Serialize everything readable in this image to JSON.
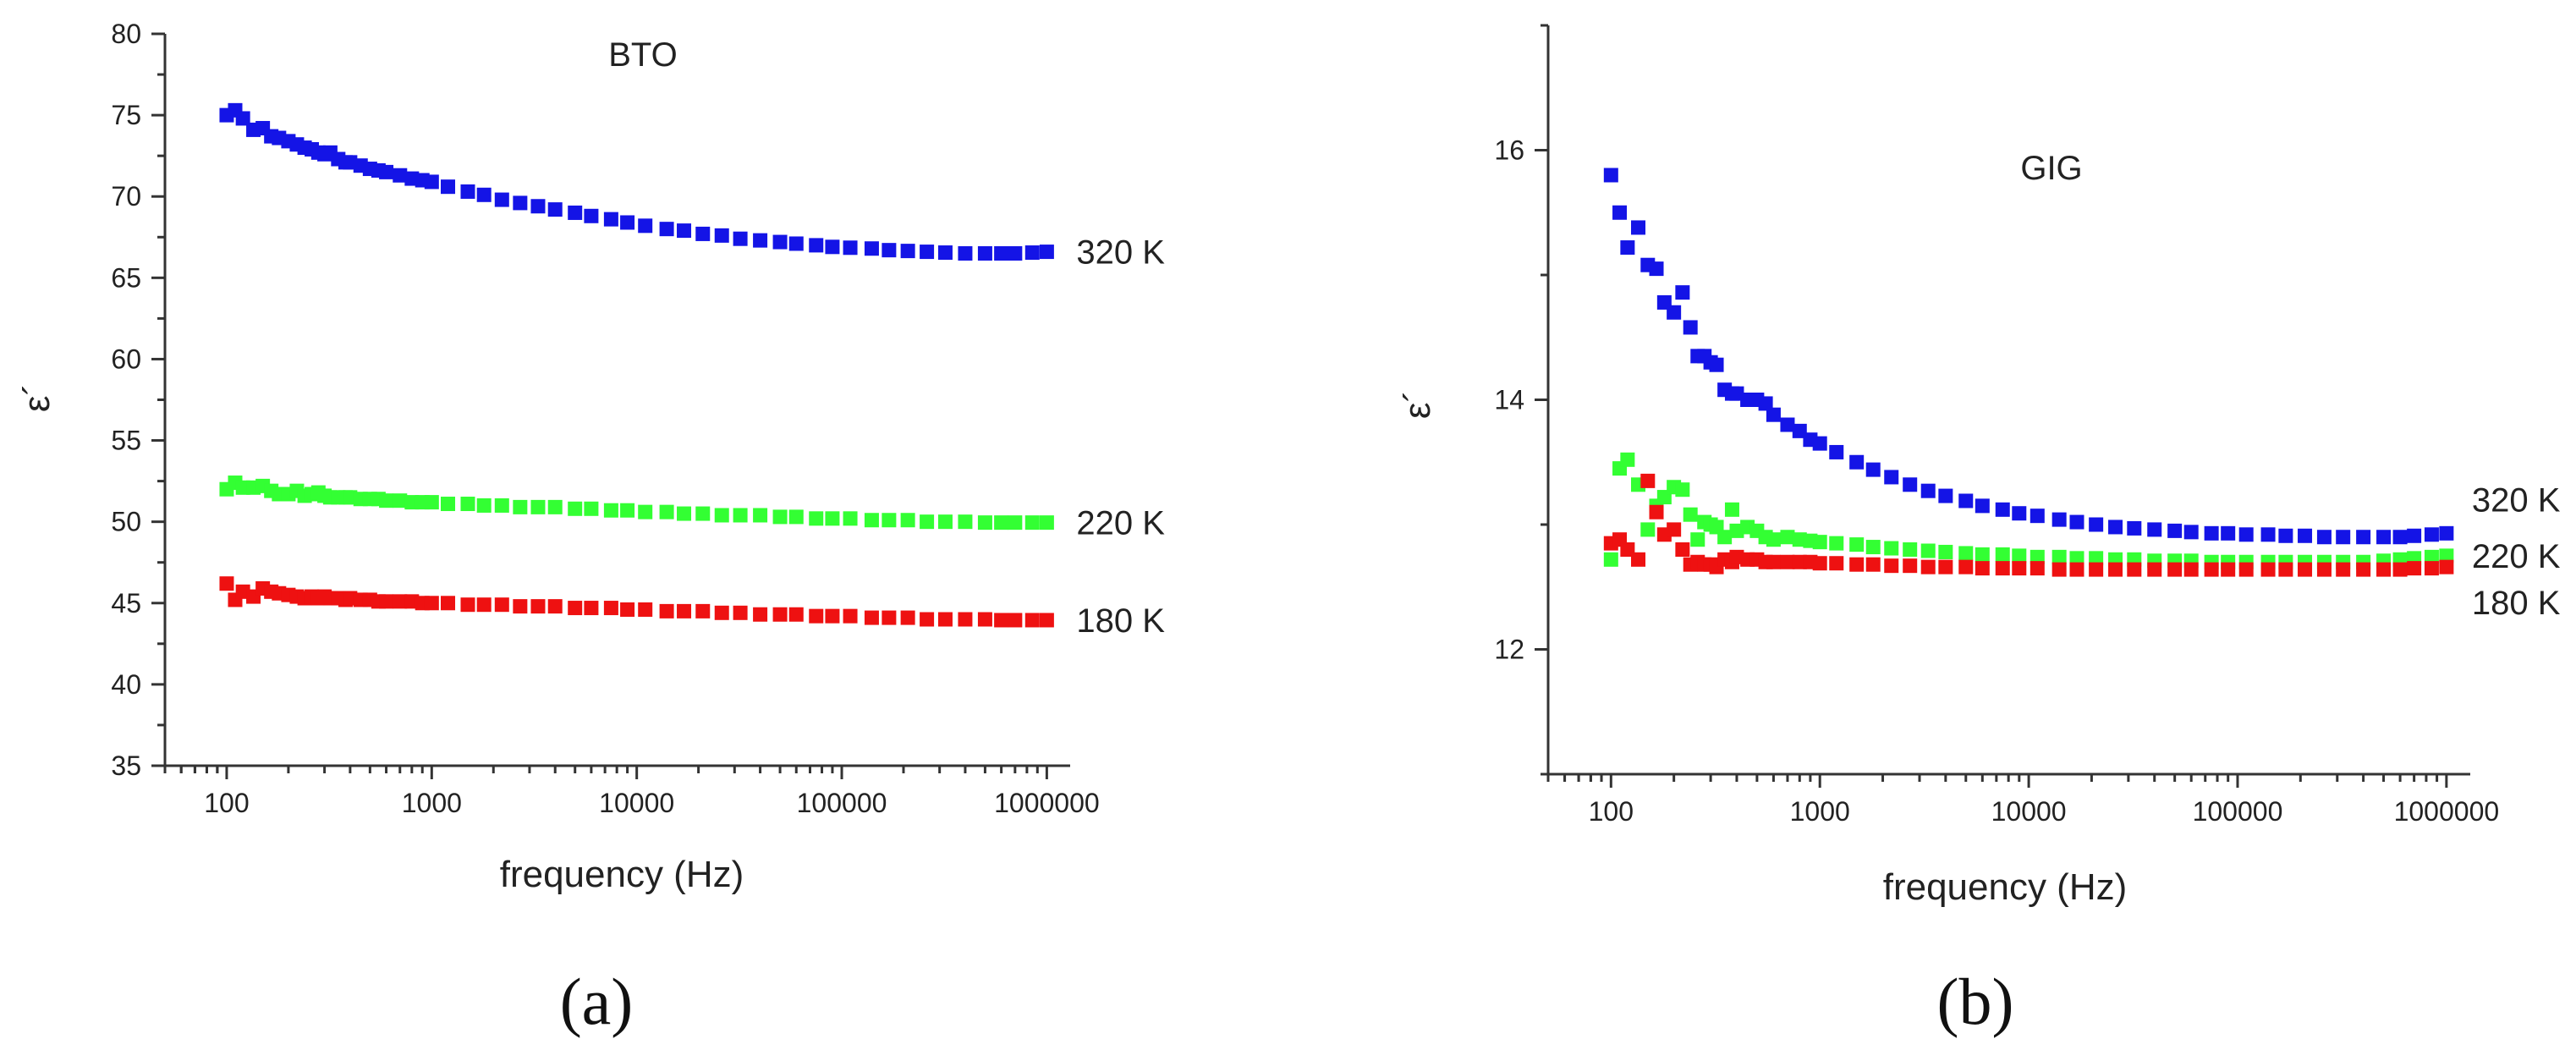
{
  "chart_data": [
    {
      "type": "scatter",
      "panel_label": "(a)",
      "title": "BTO",
      "xlabel": "frequency (Hz)",
      "ylabel": "ε´",
      "xscale": "log",
      "xlim": [
        50,
        1300000
      ],
      "ylim": [
        35,
        80
      ],
      "x_tick_labels": [
        "100",
        "1000",
        "10000",
        "100000",
        "1000000"
      ],
      "x_tick_values": [
        100,
        1000,
        10000,
        100000,
        1000000
      ],
      "y_tick_labels": [
        "35",
        "40",
        "45",
        "50",
        "55",
        "60",
        "65",
        "70",
        "75",
        "80"
      ],
      "y_tick_values": [
        35,
        40,
        45,
        50,
        55,
        60,
        65,
        70,
        75,
        80
      ],
      "y_minor_step": 2.5,
      "legend": "inline labels at right end of each series",
      "series": [
        {
          "name": "320 K",
          "color": "#1414e6",
          "x": [
            100,
            110,
            120,
            135,
            150,
            165,
            180,
            200,
            220,
            240,
            260,
            280,
            300,
            320,
            350,
            380,
            400,
            450,
            500,
            550,
            600,
            700,
            800,
            900,
            1000,
            1200,
            1500,
            1800,
            2200,
            2700,
            3300,
            4000,
            5000,
            6000,
            7500,
            9000,
            11000,
            14000,
            17000,
            21000,
            26000,
            32000,
            40000,
            50000,
            60000,
            75000,
            90000,
            110000,
            140000,
            170000,
            210000,
            260000,
            320000,
            400000,
            500000,
            600000,
            700000,
            850000,
            1000000
          ],
          "values": [
            75.0,
            75.3,
            74.8,
            74.1,
            74.2,
            73.7,
            73.6,
            73.4,
            73.2,
            73.0,
            72.9,
            72.7,
            72.6,
            72.7,
            72.3,
            72.1,
            72.1,
            71.9,
            71.7,
            71.6,
            71.5,
            71.3,
            71.1,
            71.0,
            70.9,
            70.6,
            70.3,
            70.1,
            69.8,
            69.6,
            69.4,
            69.2,
            69.0,
            68.8,
            68.6,
            68.4,
            68.2,
            68.0,
            67.9,
            67.7,
            67.6,
            67.4,
            67.3,
            67.2,
            67.1,
            67.0,
            66.9,
            66.85,
            66.8,
            66.7,
            66.65,
            66.6,
            66.55,
            66.5,
            66.5,
            66.5,
            66.5,
            66.55,
            66.6
          ]
        },
        {
          "name": "220 K",
          "color": "#33ff33",
          "x": [
            100,
            110,
            120,
            135,
            150,
            165,
            180,
            200,
            220,
            240,
            260,
            280,
            300,
            320,
            350,
            380,
            400,
            450,
            500,
            550,
            600,
            700,
            800,
            900,
            1000,
            1200,
            1500,
            1800,
            2200,
            2700,
            3300,
            4000,
            5000,
            6000,
            7500,
            9000,
            11000,
            14000,
            17000,
            21000,
            26000,
            32000,
            40000,
            50000,
            60000,
            75000,
            90000,
            110000,
            140000,
            170000,
            210000,
            260000,
            320000,
            400000,
            500000,
            600000,
            700000,
            850000,
            1000000
          ],
          "values": [
            52.0,
            52.4,
            52.1,
            52.1,
            52.2,
            51.9,
            51.7,
            51.7,
            51.9,
            51.6,
            51.7,
            51.8,
            51.6,
            51.5,
            51.5,
            51.5,
            51.5,
            51.4,
            51.4,
            51.4,
            51.3,
            51.3,
            51.2,
            51.2,
            51.2,
            51.1,
            51.1,
            51.0,
            51.0,
            50.9,
            50.9,
            50.9,
            50.8,
            50.8,
            50.7,
            50.7,
            50.6,
            50.6,
            50.5,
            50.5,
            50.4,
            50.4,
            50.4,
            50.3,
            50.3,
            50.2,
            50.2,
            50.2,
            50.1,
            50.1,
            50.1,
            50.0,
            50.0,
            50.0,
            49.95,
            49.95,
            49.95,
            49.95,
            49.95
          ]
        },
        {
          "name": "180 K",
          "color": "#ee1111",
          "x": [
            100,
            110,
            120,
            135,
            150,
            165,
            180,
            200,
            220,
            240,
            260,
            280,
            300,
            320,
            350,
            380,
            400,
            450,
            500,
            550,
            600,
            700,
            800,
            900,
            1000,
            1200,
            1500,
            1800,
            2200,
            2700,
            3300,
            4000,
            5000,
            6000,
            7500,
            9000,
            11000,
            14000,
            17000,
            21000,
            26000,
            32000,
            40000,
            50000,
            60000,
            75000,
            90000,
            110000,
            140000,
            170000,
            210000,
            260000,
            320000,
            400000,
            500000,
            600000,
            700000,
            850000,
            1000000
          ],
          "values": [
            46.2,
            45.2,
            45.7,
            45.4,
            45.9,
            45.7,
            45.6,
            45.5,
            45.4,
            45.3,
            45.4,
            45.3,
            45.4,
            45.3,
            45.3,
            45.2,
            45.3,
            45.2,
            45.2,
            45.1,
            45.1,
            45.1,
            45.1,
            45.0,
            45.0,
            45.0,
            44.9,
            44.9,
            44.9,
            44.8,
            44.8,
            44.8,
            44.7,
            44.7,
            44.7,
            44.6,
            44.6,
            44.5,
            44.5,
            44.5,
            44.4,
            44.4,
            44.3,
            44.3,
            44.3,
            44.2,
            44.2,
            44.2,
            44.1,
            44.1,
            44.1,
            44.0,
            44.0,
            44.0,
            44.0,
            43.95,
            43.95,
            43.95,
            43.95
          ]
        }
      ]
    },
    {
      "type": "scatter",
      "panel_label": "(b)",
      "title": "GIG",
      "xlabel": "frequency (Hz)",
      "ylabel": "ε´",
      "xscale": "log",
      "xlim": [
        50,
        1300000
      ],
      "ylim": [
        11,
        17
      ],
      "x_tick_labels": [
        "100",
        "1000",
        "10000",
        "100000",
        "1000000"
      ],
      "x_tick_values": [
        100,
        1000,
        10000,
        100000,
        1000000
      ],
      "y_tick_labels": [
        "12",
        "14",
        "16"
      ],
      "y_tick_values": [
        12,
        14,
        16
      ],
      "y_minor_step": 1,
      "legend": "inline labels at right end of each series",
      "series": [
        {
          "name": "320 K",
          "color": "#1414e6",
          "x": [
            100,
            110,
            120,
            135,
            150,
            165,
            180,
            200,
            220,
            240,
            260,
            280,
            300,
            320,
            350,
            380,
            400,
            450,
            500,
            550,
            600,
            700,
            800,
            900,
            1000,
            1200,
            1500,
            1800,
            2200,
            2700,
            3300,
            4000,
            5000,
            6000,
            7500,
            9000,
            11000,
            14000,
            17000,
            21000,
            26000,
            32000,
            40000,
            50000,
            60000,
            75000,
            90000,
            110000,
            140000,
            170000,
            210000,
            260000,
            320000,
            400000,
            500000,
            600000,
            700000,
            850000,
            1000000
          ],
          "values": [
            15.8,
            15.5,
            15.22,
            15.38,
            15.08,
            15.05,
            14.78,
            14.7,
            14.86,
            14.58,
            14.35,
            14.35,
            14.3,
            14.28,
            14.08,
            14.05,
            14.05,
            14.0,
            14.0,
            13.97,
            13.88,
            13.8,
            13.75,
            13.68,
            13.65,
            13.58,
            13.5,
            13.44,
            13.38,
            13.32,
            13.27,
            13.23,
            13.19,
            13.15,
            13.12,
            13.09,
            13.07,
            13.04,
            13.02,
            13.0,
            12.98,
            12.97,
            12.96,
            12.95,
            12.94,
            12.93,
            12.93,
            12.92,
            12.92,
            12.91,
            12.91,
            12.9,
            12.9,
            12.9,
            12.9,
            12.9,
            12.91,
            12.92,
            12.93
          ]
        },
        {
          "name": "220 K",
          "color": "#33ff33",
          "x": [
            100,
            110,
            120,
            135,
            150,
            165,
            180,
            200,
            220,
            240,
            260,
            280,
            300,
            320,
            350,
            380,
            400,
            450,
            500,
            550,
            600,
            700,
            800,
            900,
            1000,
            1200,
            1500,
            1800,
            2200,
            2700,
            3300,
            4000,
            5000,
            6000,
            7500,
            9000,
            11000,
            14000,
            17000,
            21000,
            26000,
            32000,
            40000,
            50000,
            60000,
            75000,
            90000,
            110000,
            140000,
            170000,
            210000,
            260000,
            320000,
            400000,
            500000,
            600000,
            700000,
            850000,
            1000000
          ],
          "values": [
            12.72,
            13.45,
            13.52,
            13.32,
            12.96,
            13.15,
            13.22,
            13.3,
            13.28,
            13.08,
            12.88,
            13.02,
            13.0,
            12.98,
            12.9,
            13.12,
            12.95,
            12.98,
            12.95,
            12.9,
            12.88,
            12.9,
            12.88,
            12.87,
            12.86,
            12.85,
            12.84,
            12.82,
            12.81,
            12.8,
            12.79,
            12.78,
            12.77,
            12.76,
            12.76,
            12.75,
            12.74,
            12.74,
            12.73,
            12.73,
            12.72,
            12.72,
            12.71,
            12.71,
            12.71,
            12.7,
            12.7,
            12.7,
            12.7,
            12.7,
            12.7,
            12.7,
            12.7,
            12.7,
            12.71,
            12.72,
            12.73,
            12.74,
            12.75
          ]
        },
        {
          "name": "180 K",
          "color": "#ee1111",
          "x": [
            100,
            110,
            120,
            135,
            150,
            165,
            180,
            200,
            220,
            240,
            260,
            280,
            300,
            320,
            350,
            380,
            400,
            450,
            500,
            550,
            600,
            700,
            800,
            900,
            1000,
            1200,
            1500,
            1800,
            2200,
            2700,
            3300,
            4000,
            5000,
            6000,
            7500,
            9000,
            11000,
            14000,
            17000,
            21000,
            26000,
            32000,
            40000,
            50000,
            60000,
            75000,
            90000,
            110000,
            140000,
            170000,
            210000,
            260000,
            320000,
            400000,
            500000,
            600000,
            700000,
            850000,
            1000000
          ],
          "values": [
            12.85,
            12.88,
            12.8,
            12.72,
            13.35,
            13.1,
            12.92,
            12.96,
            12.8,
            12.68,
            12.7,
            12.68,
            12.68,
            12.66,
            12.72,
            12.7,
            12.74,
            12.72,
            12.72,
            12.7,
            12.7,
            12.7,
            12.7,
            12.7,
            12.69,
            12.69,
            12.68,
            12.68,
            12.67,
            12.67,
            12.66,
            12.66,
            12.66,
            12.65,
            12.65,
            12.65,
            12.65,
            12.64,
            12.64,
            12.64,
            12.64,
            12.64,
            12.64,
            12.64,
            12.64,
            12.64,
            12.64,
            12.64,
            12.64,
            12.64,
            12.64,
            12.64,
            12.64,
            12.64,
            12.64,
            12.64,
            12.65,
            12.65,
            12.66
          ]
        }
      ]
    }
  ]
}
